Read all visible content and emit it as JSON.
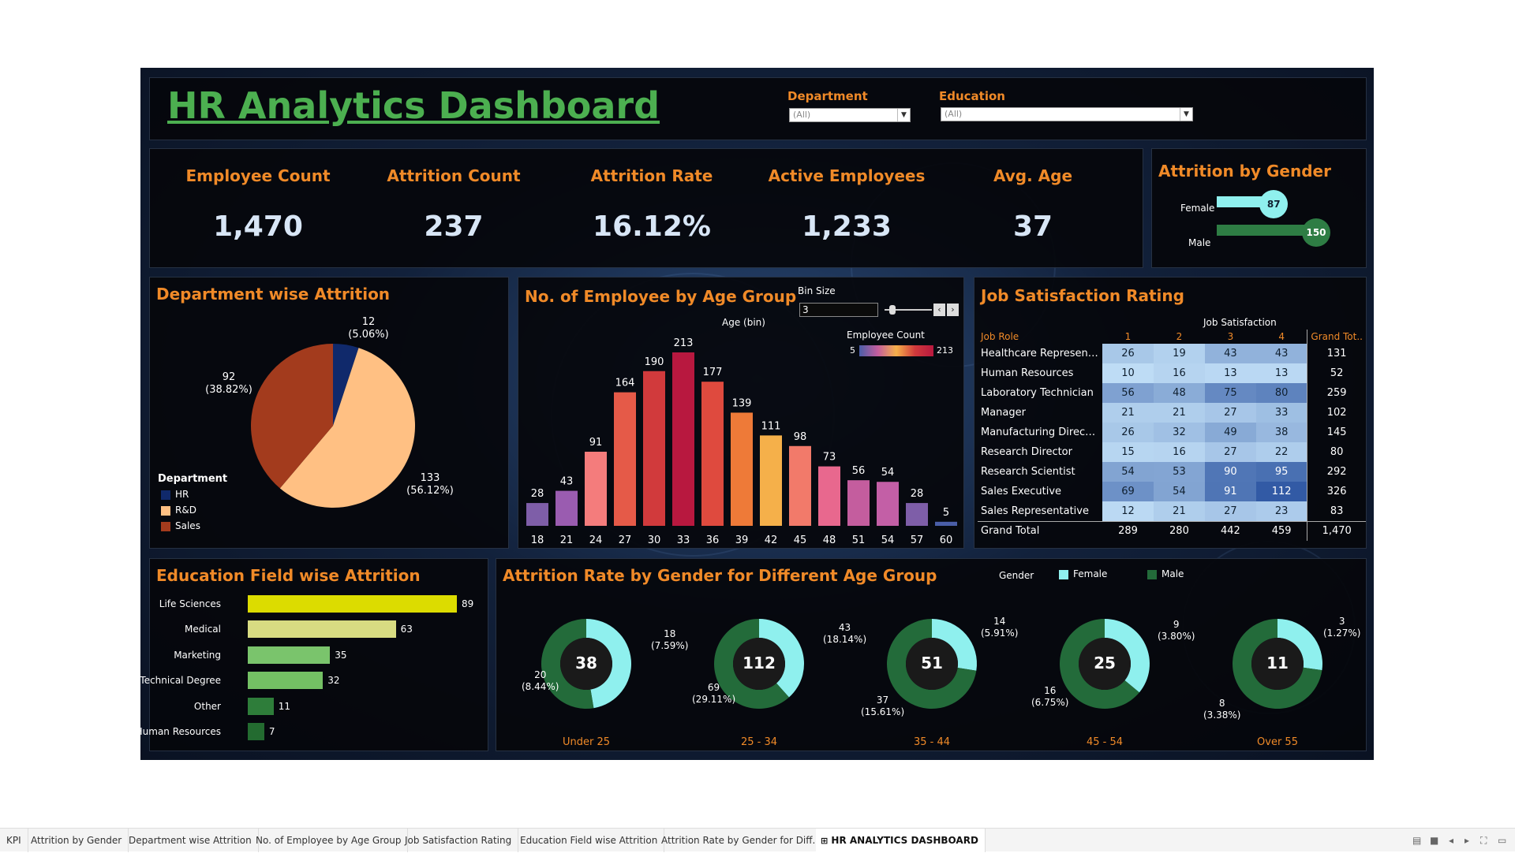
{
  "header": {
    "title": "HR Analytics Dashboard",
    "filters": [
      {
        "label": "Department",
        "value": "(All)"
      },
      {
        "label": "Education",
        "value": "(All)"
      }
    ]
  },
  "kpis": [
    {
      "label": "Employee Count",
      "value": "1,470"
    },
    {
      "label": "Attrition Count",
      "value": "237"
    },
    {
      "label": "Attrition Rate",
      "value": "16.12%"
    },
    {
      "label": "Active Employees",
      "value": "1,233"
    },
    {
      "label": "Avg. Age",
      "value": "37"
    }
  ],
  "gender_attrition": {
    "title": "Attrition by Gender",
    "colors": {
      "Female": "#8ff0ee",
      "Male": "#2e7d44"
    },
    "chart_data": {
      "type": "bar",
      "categories": [
        "Female",
        "Male"
      ],
      "values": [
        87,
        150
      ],
      "title": "Attrition by Gender"
    }
  },
  "dept_attrition": {
    "title": "Department wise Attrition",
    "legend_title": "Department",
    "colors": {
      "HR": "#10296b",
      "R&D": "#ffc083",
      "Sales": "#a33b1d"
    },
    "chart_data": {
      "type": "pie",
      "title": "Department wise Attrition",
      "categories": [
        "HR",
        "R&D",
        "Sales"
      ],
      "values": [
        12,
        133,
        92
      ],
      "labels": [
        "12\n(5.06%)",
        "133\n(56.12%)",
        "92\n(38.82%)"
      ],
      "legend": "bottom-left"
    }
  },
  "age_group": {
    "title": "No. of Employee by Age Group",
    "bin_size_label": "Bin Size",
    "bin_size_value": "3",
    "axis_label": "Age (bin)",
    "color_legend_title": "Employee Count",
    "color_min": "5",
    "color_max": "213",
    "chart_data": {
      "type": "bar",
      "title": "No. of Employee by Age Group",
      "xlabel": "Age (bin)",
      "categories": [
        "18",
        "21",
        "24",
        "27",
        "30",
        "33",
        "36",
        "39",
        "42",
        "45",
        "48",
        "51",
        "54",
        "57",
        "60"
      ],
      "values": [
        28,
        43,
        91,
        164,
        190,
        213,
        177,
        139,
        111,
        98,
        73,
        56,
        54,
        28,
        5
      ],
      "colors": [
        "#7e5ea8",
        "#9a5cb0",
        "#f47c7c",
        "#e55a48",
        "#d13a3c",
        "#b8183f",
        "#df4a3e",
        "#ee7a38",
        "#f5b04a",
        "#f27a6a",
        "#e8688e",
        "#c45d9e",
        "#c35fa6",
        "#7e5ea8",
        "#4a5ea8"
      ]
    }
  },
  "job_satisfaction": {
    "title": "Job Satisfaction Rating",
    "column_group": "Job Satisfaction",
    "row_header": "Job Role",
    "columns": [
      "1",
      "2",
      "3",
      "4"
    ],
    "grand_total_header": "Grand Tot..",
    "rows": [
      {
        "role": "Healthcare Representat..",
        "values": [
          26,
          19,
          43,
          43
        ],
        "total": "131"
      },
      {
        "role": "Human Resources",
        "values": [
          10,
          16,
          13,
          13
        ],
        "total": "52"
      },
      {
        "role": "Laboratory Technician",
        "values": [
          56,
          48,
          75,
          80
        ],
        "total": "259"
      },
      {
        "role": "Manager",
        "values": [
          21,
          21,
          27,
          33
        ],
        "total": "102"
      },
      {
        "role": "Manufacturing Director",
        "values": [
          26,
          32,
          49,
          38
        ],
        "total": "145"
      },
      {
        "role": "Research Director",
        "values": [
          15,
          16,
          27,
          22
        ],
        "total": "80"
      },
      {
        "role": "Research Scientist",
        "values": [
          54,
          53,
          90,
          95
        ],
        "total": "292"
      },
      {
        "role": "Sales Executive",
        "values": [
          69,
          54,
          91,
          112
        ],
        "total": "326"
      },
      {
        "role": "Sales Representative",
        "values": [
          12,
          21,
          27,
          23
        ],
        "total": "83"
      }
    ],
    "grand_total": {
      "label": "Grand Total",
      "values": [
        "289",
        "280",
        "442",
        "459"
      ],
      "total": "1,470"
    }
  },
  "education_attrition": {
    "title": "Education Field wise Attrition",
    "chart_data": {
      "type": "bar",
      "title": "Education Field wise Attrition",
      "categories": [
        "Life Sciences",
        "Medical",
        "Marketing",
        "Technical Degree",
        "Other",
        "Human Resources"
      ],
      "values": [
        89,
        63,
        35,
        32,
        11,
        7
      ],
      "colors": [
        "#dcdc00",
        "#d8dc82",
        "#7ac46c",
        "#74c064",
        "#2e7d3a",
        "#236b30"
      ]
    }
  },
  "gender_age": {
    "title": "Attrition Rate by Gender for Different Age Group",
    "legend_title": "Gender",
    "legend": [
      {
        "name": "Female",
        "color": "#8ff0ee"
      },
      {
        "name": "Male",
        "color": "#236b3a"
      }
    ],
    "chart_data": {
      "type": "pie",
      "title": "Attrition Rate by Gender for Different Age Group",
      "groups": [
        {
          "category": "Under 25",
          "total": "38",
          "female": 18,
          "male": 20,
          "female_label": "18\n(7.59%)",
          "male_label": "20\n(8.44%)"
        },
        {
          "category": "25 - 34",
          "total": "112",
          "female": 43,
          "male": 69,
          "female_label": "43\n(18.14%)",
          "male_label": "69\n(29.11%)"
        },
        {
          "category": "35 - 44",
          "total": "51",
          "female": 14,
          "male": 37,
          "female_label": "14\n(5.91%)",
          "male_label": "37\n(15.61%)"
        },
        {
          "category": "45 - 54",
          "total": "25",
          "female": 9,
          "male": 16,
          "female_label": "9\n(3.80%)",
          "male_label": "16\n(6.75%)"
        },
        {
          "category": "Over 55",
          "total": "11",
          "female": 3,
          "male": 8,
          "female_label": "3\n(1.27%)",
          "male_label": "8\n(3.38%)"
        }
      ]
    }
  },
  "tabs": [
    {
      "label": "KPI"
    },
    {
      "label": "Attrition by Gender"
    },
    {
      "label": "Department wise Attrition"
    },
    {
      "label": "No. of Employee by Age Group"
    },
    {
      "label": "Job Satisfaction Rating"
    },
    {
      "label": "Education Field wise Attrition"
    },
    {
      "label": "Attrition Rate by Gender for Diff..."
    },
    {
      "label": "HR ANALYTICS DASHBOARD"
    }
  ]
}
